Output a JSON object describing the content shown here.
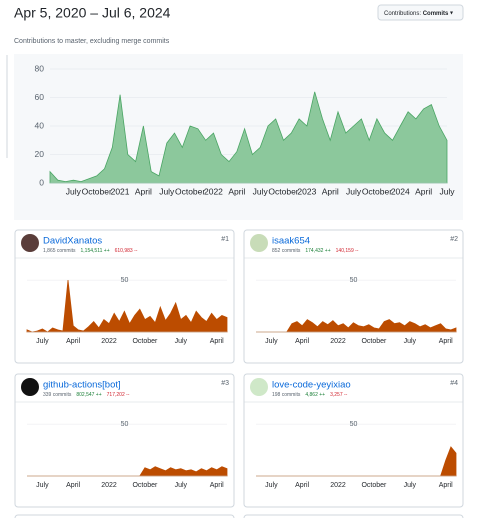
{
  "header": {
    "title": "Apr 5, 2020 – Jul 6, 2024",
    "button_label": "Contributions:",
    "button_value": "Commits",
    "subtitle": "Contributions to master, excluding merge commits"
  },
  "chart_data": {
    "type": "area",
    "color": "#8cc89c",
    "line_color": "#4aa564",
    "values": [
      8,
      2,
      1,
      2,
      1,
      3,
      5,
      10,
      25,
      62,
      20,
      15,
      40,
      8,
      5,
      28,
      35,
      25,
      40,
      38,
      30,
      35,
      20,
      15,
      22,
      38,
      20,
      25,
      40,
      45,
      30,
      35,
      45,
      40,
      64,
      45,
      30,
      50,
      35,
      40,
      45,
      30,
      45,
      35,
      30,
      40,
      50,
      45,
      52,
      55,
      40,
      30
    ],
    "ylim": [
      0,
      85
    ],
    "yticks": [
      0,
      20,
      40,
      60,
      80
    ],
    "xticks": [
      {
        "value": 3,
        "label": "July"
      },
      {
        "value": 6,
        "label": "October"
      },
      {
        "value": 9,
        "label": "2021"
      },
      {
        "value": 12,
        "label": "April"
      },
      {
        "value": 15,
        "label": "July"
      },
      {
        "value": 18,
        "label": "October"
      },
      {
        "value": 21,
        "label": "2022"
      },
      {
        "value": 24,
        "label": "April"
      },
      {
        "value": 27,
        "label": "July"
      },
      {
        "value": 30,
        "label": "October"
      },
      {
        "value": 33,
        "label": "2023"
      },
      {
        "value": 36,
        "label": "April"
      },
      {
        "value": 39,
        "label": "July"
      },
      {
        "value": 42,
        "label": "October"
      },
      {
        "value": 45,
        "label": "2024"
      },
      {
        "value": 48,
        "label": "April"
      },
      {
        "value": 51,
        "label": "July"
      }
    ]
  },
  "contributors": [
    {
      "rank": "#1",
      "name": "DavidXanatos",
      "commits": "1,865 commits",
      "additions": "1,154,511 ++",
      "deletions": "610,983 --",
      "chart": {
        "type": "area",
        "color": "#bc4c00",
        "values": [
          2,
          0,
          1,
          3,
          0,
          4,
          2,
          1,
          50,
          6,
          2,
          1,
          5,
          10,
          4,
          12,
          8,
          18,
          10,
          20,
          8,
          16,
          22,
          12,
          15,
          9,
          24,
          11,
          18,
          28,
          12,
          16,
          9,
          20,
          14,
          10,
          18,
          12,
          16,
          14
        ],
        "ylim": [
          0,
          80
        ],
        "yticks": [
          50
        ],
        "xticks": [
          {
            "value": 3,
            "label": "July"
          },
          {
            "value": 9,
            "label": "April"
          },
          {
            "value": 16,
            "label": "2022"
          },
          {
            "value": 23,
            "label": "October"
          },
          {
            "value": 30,
            "label": "July"
          },
          {
            "value": 37,
            "label": "April"
          }
        ]
      }
    },
    {
      "rank": "#2",
      "name": "isaak654",
      "commits": "852 commits",
      "additions": "174,432 ++",
      "deletions": "140,159 --",
      "chart": {
        "type": "area",
        "color": "#bc4c00",
        "values": [
          0,
          0,
          0,
          0,
          0,
          0,
          0,
          8,
          10,
          6,
          12,
          9,
          5,
          10,
          7,
          11,
          6,
          8,
          4,
          9,
          6,
          5,
          7,
          4,
          3,
          10,
          12,
          8,
          9,
          6,
          10,
          8,
          5,
          7,
          4,
          6,
          8,
          3,
          2,
          4
        ],
        "ylim": [
          0,
          80
        ],
        "yticks": [
          50
        ],
        "xticks": [
          {
            "value": 3,
            "label": "July"
          },
          {
            "value": 9,
            "label": "April"
          },
          {
            "value": 16,
            "label": "2022"
          },
          {
            "value": 23,
            "label": "October"
          },
          {
            "value": 30,
            "label": "July"
          },
          {
            "value": 37,
            "label": "April"
          }
        ]
      }
    },
    {
      "rank": "#3",
      "name": "github-actions[bot]",
      "commits": "339 commits",
      "additions": "802,547 ++",
      "deletions": "717,202 --",
      "chart": {
        "type": "area",
        "color": "#bc4c00",
        "values": [
          0,
          0,
          0,
          0,
          0,
          0,
          0,
          0,
          0,
          0,
          0,
          0,
          0,
          0,
          0,
          0,
          0,
          0,
          0,
          0,
          0,
          0,
          0,
          8,
          6,
          9,
          7,
          5,
          8,
          6,
          7,
          5,
          6,
          4,
          7,
          5,
          8,
          6,
          9,
          7
        ],
        "ylim": [
          0,
          80
        ],
        "yticks": [
          50
        ],
        "xticks": [
          {
            "value": 3,
            "label": "July"
          },
          {
            "value": 9,
            "label": "April"
          },
          {
            "value": 16,
            "label": "2022"
          },
          {
            "value": 23,
            "label": "October"
          },
          {
            "value": 30,
            "label": "July"
          },
          {
            "value": 37,
            "label": "April"
          }
        ]
      }
    },
    {
      "rank": "#4",
      "name": "love-code-yeyixiao",
      "commits": "198 commits",
      "additions": "4,862 ++",
      "deletions": "3,257 --",
      "chart": {
        "type": "area",
        "color": "#bc4c00",
        "values": [
          0,
          0,
          0,
          0,
          0,
          0,
          0,
          0,
          0,
          0,
          0,
          0,
          0,
          0,
          0,
          0,
          0,
          0,
          0,
          0,
          0,
          0,
          0,
          0,
          0,
          0,
          0,
          0,
          0,
          0,
          0,
          0,
          0,
          0,
          0,
          0,
          0,
          15,
          28,
          22
        ],
        "ylim": [
          0,
          80
        ],
        "yticks": [
          50
        ],
        "xticks": [
          {
            "value": 3,
            "label": "July"
          },
          {
            "value": 9,
            "label": "April"
          },
          {
            "value": 16,
            "label": "2022"
          },
          {
            "value": 23,
            "label": "October"
          },
          {
            "value": 30,
            "label": "July"
          },
          {
            "value": 37,
            "label": "April"
          }
        ]
      }
    }
  ]
}
